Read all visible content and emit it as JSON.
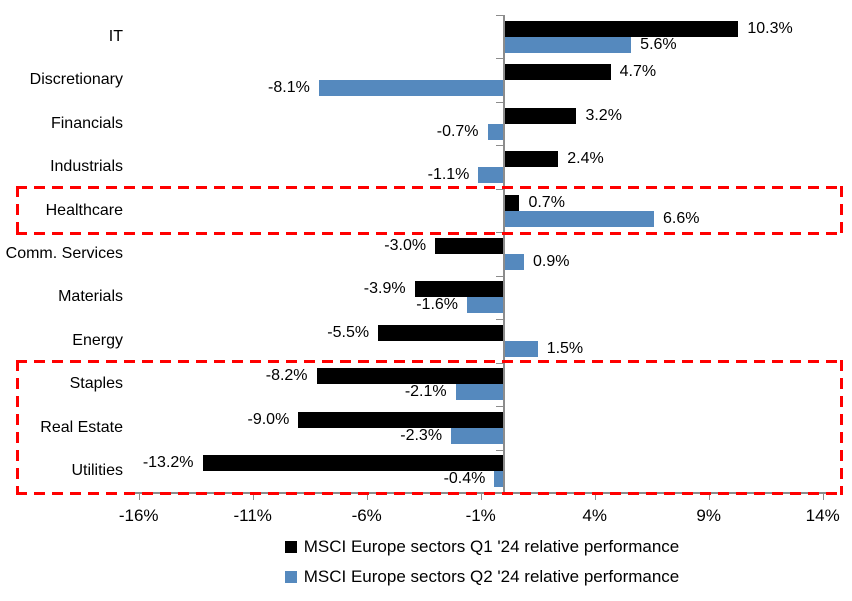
{
  "chart_data": {
    "type": "bar",
    "orientation": "horizontal",
    "title": "",
    "categories": [
      "IT",
      "Discretionary",
      "Financials",
      "Industrials",
      "Healthcare",
      "Comm. Services",
      "Materials",
      "Energy",
      "Staples",
      "Real Estate",
      "Utilities"
    ],
    "series": [
      {
        "name": "MSCI Europe sectors Q1 '24 relative performance",
        "color": "#000000",
        "values": [
          10.3,
          4.7,
          3.2,
          2.4,
          0.7,
          -3.0,
          -3.9,
          -5.5,
          -8.2,
          -9.0,
          -13.2
        ],
        "labels": [
          "10.3%",
          "4.7%",
          "3.2%",
          "2.4%",
          "0.7%",
          "-3.0%",
          "-3.9%",
          "-5.5%",
          "-8.2%",
          "-9.0%",
          "-13.2%"
        ]
      },
      {
        "name": "MSCI Europe sectors Q2 '24 relative performance",
        "color": "#5589BE",
        "values": [
          5.6,
          -8.1,
          -0.7,
          -1.1,
          6.6,
          0.9,
          -1.6,
          1.5,
          -2.1,
          -2.3,
          -0.4
        ],
        "labels": [
          "5.6%",
          "-8.1%",
          "-0.7%",
          "-1.1%",
          "6.6%",
          "0.9%",
          "-1.6%",
          "1.5%",
          "-2.1%",
          "-2.3%",
          "-0.4%"
        ]
      }
    ],
    "x_axis": {
      "tick_labels": [
        "-16%",
        "-11%",
        "-6%",
        "-1%",
        "4%",
        "9%",
        "14%"
      ],
      "tick_values": [
        -16,
        -11,
        -6,
        -1,
        4,
        9,
        14
      ],
      "range": [
        -16.5,
        14.6
      ],
      "unit": "%"
    },
    "grid": false,
    "legend_position": "bottom-center",
    "axis_color": "#8C8C8C",
    "annotations": {
      "box_color": "#FF0000",
      "highlight_boxes": [
        {
          "categories": [
            "Healthcare"
          ],
          "style": "red-dashed"
        },
        {
          "categories": [
            "Staples",
            "Real Estate",
            "Utilities"
          ],
          "style": "red-dashed"
        }
      ]
    }
  }
}
